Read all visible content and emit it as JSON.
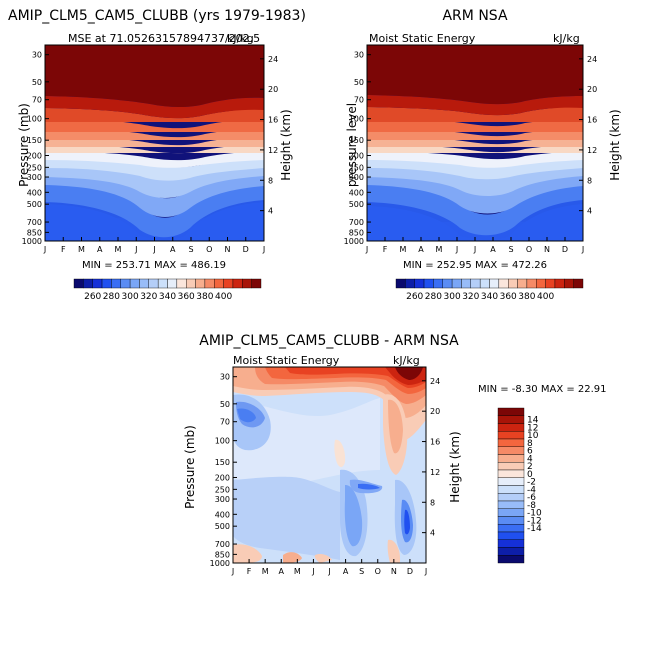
{
  "chart_data": [
    {
      "type": "heatmap",
      "title": "AMIP_CLM5_CAM5_CLUBB (yrs 1979-1983)",
      "subtitle_left": "MSE at 71.05263157894737/202.5",
      "subtitle_right": "kJ/kg",
      "ylabel": "Pressure (mb)",
      "ylabel_right": "Height (km)",
      "months": [
        "J",
        "F",
        "M",
        "A",
        "M",
        "J",
        "J",
        "A",
        "S",
        "O",
        "N",
        "D",
        "J"
      ],
      "pressure_ticks": [
        "30",
        "50",
        "70",
        "100",
        "150",
        "200",
        "250",
        "300",
        "400",
        "500",
        "700",
        "850",
        "1000"
      ],
      "height_ticks": [
        "24",
        "20",
        "16",
        "12",
        "8",
        "4"
      ],
      "stats": "MIN = 253.71 MAX = 486.19",
      "min": 253.71,
      "max": 486.19
    },
    {
      "type": "heatmap",
      "title": "ARM NSA",
      "subtitle_left": "Moist Static Energy",
      "subtitle_right": "kJ/kg",
      "ylabel": "pressure level",
      "ylabel_right": "Height (km)",
      "months": [
        "J",
        "F",
        "M",
        "A",
        "M",
        "J",
        "J",
        "A",
        "S",
        "O",
        "N",
        "D",
        "J"
      ],
      "pressure_ticks": [
        "30",
        "50",
        "70",
        "100",
        "150",
        "200",
        "250",
        "300",
        "400",
        "500",
        "700",
        "850",
        "1000"
      ],
      "height_ticks": [
        "24",
        "20",
        "16",
        "12",
        "8",
        "4"
      ],
      "stats": "MIN = 252.95 MAX = 472.26",
      "min": 252.95,
      "max": 472.26
    },
    {
      "type": "heatmap",
      "title": "AMIP_CLM5_CAM5_CLUBB - ARM NSA",
      "subtitle_left": "Moist Static Energy",
      "subtitle_right": "kJ/kg",
      "ylabel": "Pressure (mb)",
      "ylabel_right": "Height (km)",
      "months": [
        "J",
        "F",
        "M",
        "A",
        "M",
        "J",
        "J",
        "A",
        "S",
        "O",
        "N",
        "D",
        "J"
      ],
      "pressure_ticks": [
        "30",
        "50",
        "70",
        "100",
        "150",
        "200",
        "250",
        "300",
        "400",
        "500",
        "700",
        "850",
        "1000"
      ],
      "height_ticks": [
        "24",
        "20",
        "16",
        "12",
        "8",
        "4"
      ],
      "stats": "MIN =  -8.30 MAX =  22.91",
      "min": -8.3,
      "max": 22.91
    }
  ],
  "colorbar_top": {
    "labels": [
      "260",
      "280",
      "300",
      "320",
      "340",
      "360",
      "380",
      "400"
    ],
    "colors": [
      "#0a0a6e",
      "#0d1ea8",
      "#1530d8",
      "#2050f0",
      "#3a6ef4",
      "#5a8cf4",
      "#7aa6f6",
      "#98bcf8",
      "#b4cef8",
      "#cce0fa",
      "#e6eefa",
      "#fbe6dc",
      "#f9ccb6",
      "#f7ae8e",
      "#f58a66",
      "#f3663e",
      "#e84222",
      "#cc2410",
      "#a81408",
      "#7c0606"
    ]
  },
  "colorbar_diff": {
    "labels": [
      "14",
      "12",
      "10",
      "8",
      "6",
      "4",
      "2",
      "0",
      "-2",
      "-4",
      "-6",
      "-8",
      "-10",
      "-12",
      "-14"
    ],
    "colors": [
      "#7c0606",
      "#a81408",
      "#cc2410",
      "#e84222",
      "#f3663e",
      "#f58a66",
      "#f7ae8e",
      "#f9ccb6",
      "#fbe6dc",
      "#e6eefa",
      "#cce0fa",
      "#b4cef8",
      "#98bcf8",
      "#7aa6f6",
      "#5a8cf4",
      "#3a6ef4",
      "#2050f0",
      "#1530d8",
      "#0d1ea8",
      "#0a0a6e"
    ]
  }
}
